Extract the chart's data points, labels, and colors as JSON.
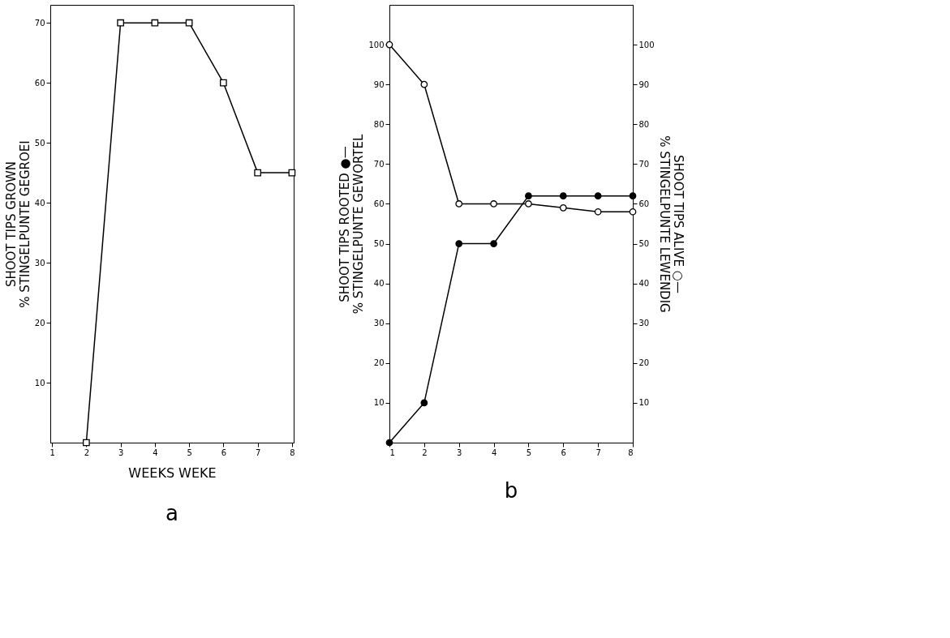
{
  "chart_data": [
    {
      "type": "line",
      "title": "a",
      "xlabel": "WEEKS WEKE",
      "ylabel": "SHOOT TIPS GROWN\n% STINGELPUNTE GEGROEI",
      "x": [
        2,
        3,
        4,
        5,
        6,
        7,
        8
      ],
      "xlim": [
        0.95,
        8.05
      ],
      "xticks": [
        1,
        2,
        3,
        4,
        5,
        6,
        7,
        8
      ],
      "ylim": [
        0,
        73
      ],
      "yticks": [
        10,
        20,
        30,
        40,
        50,
        60,
        70
      ],
      "grid": false,
      "series": [
        {
          "color": "#000000",
          "marker": "square",
          "values": [
            0,
            70,
            70,
            70,
            60,
            45,
            45
          ]
        }
      ]
    },
    {
      "type": "line",
      "title": "b",
      "ylabel": "SHOOT TIPS ROOTED ●—\n% STINGELPUNTE GEWORTEL",
      "y2label": "SHOOT TIPS ALIVE ○—\n% STINGELPUNTE LEWENDIG",
      "x": [
        1,
        2,
        3,
        4,
        5,
        6,
        7,
        8
      ],
      "xlim": [
        1,
        8
      ],
      "xticks": [
        1,
        2,
        3,
        4,
        5,
        6,
        7,
        8
      ],
      "ylim": [
        0,
        110
      ],
      "yticks": [
        10,
        20,
        30,
        40,
        50,
        60,
        70,
        80,
        90,
        100
      ],
      "y2lim": [
        0,
        110
      ],
      "y2ticks": [
        10,
        20,
        30,
        40,
        50,
        60,
        70,
        80,
        90,
        100
      ],
      "grid": false,
      "series": [
        {
          "color": "#000000",
          "marker": "circle",
          "values": [
            0,
            10,
            50,
            50,
            62,
            62,
            62,
            62
          ]
        },
        {
          "color": "#000000",
          "marker": "circle",
          "axis": "y2",
          "values": [
            100,
            90,
            60,
            60,
            60,
            59,
            58,
            58
          ]
        }
      ]
    }
  ]
}
